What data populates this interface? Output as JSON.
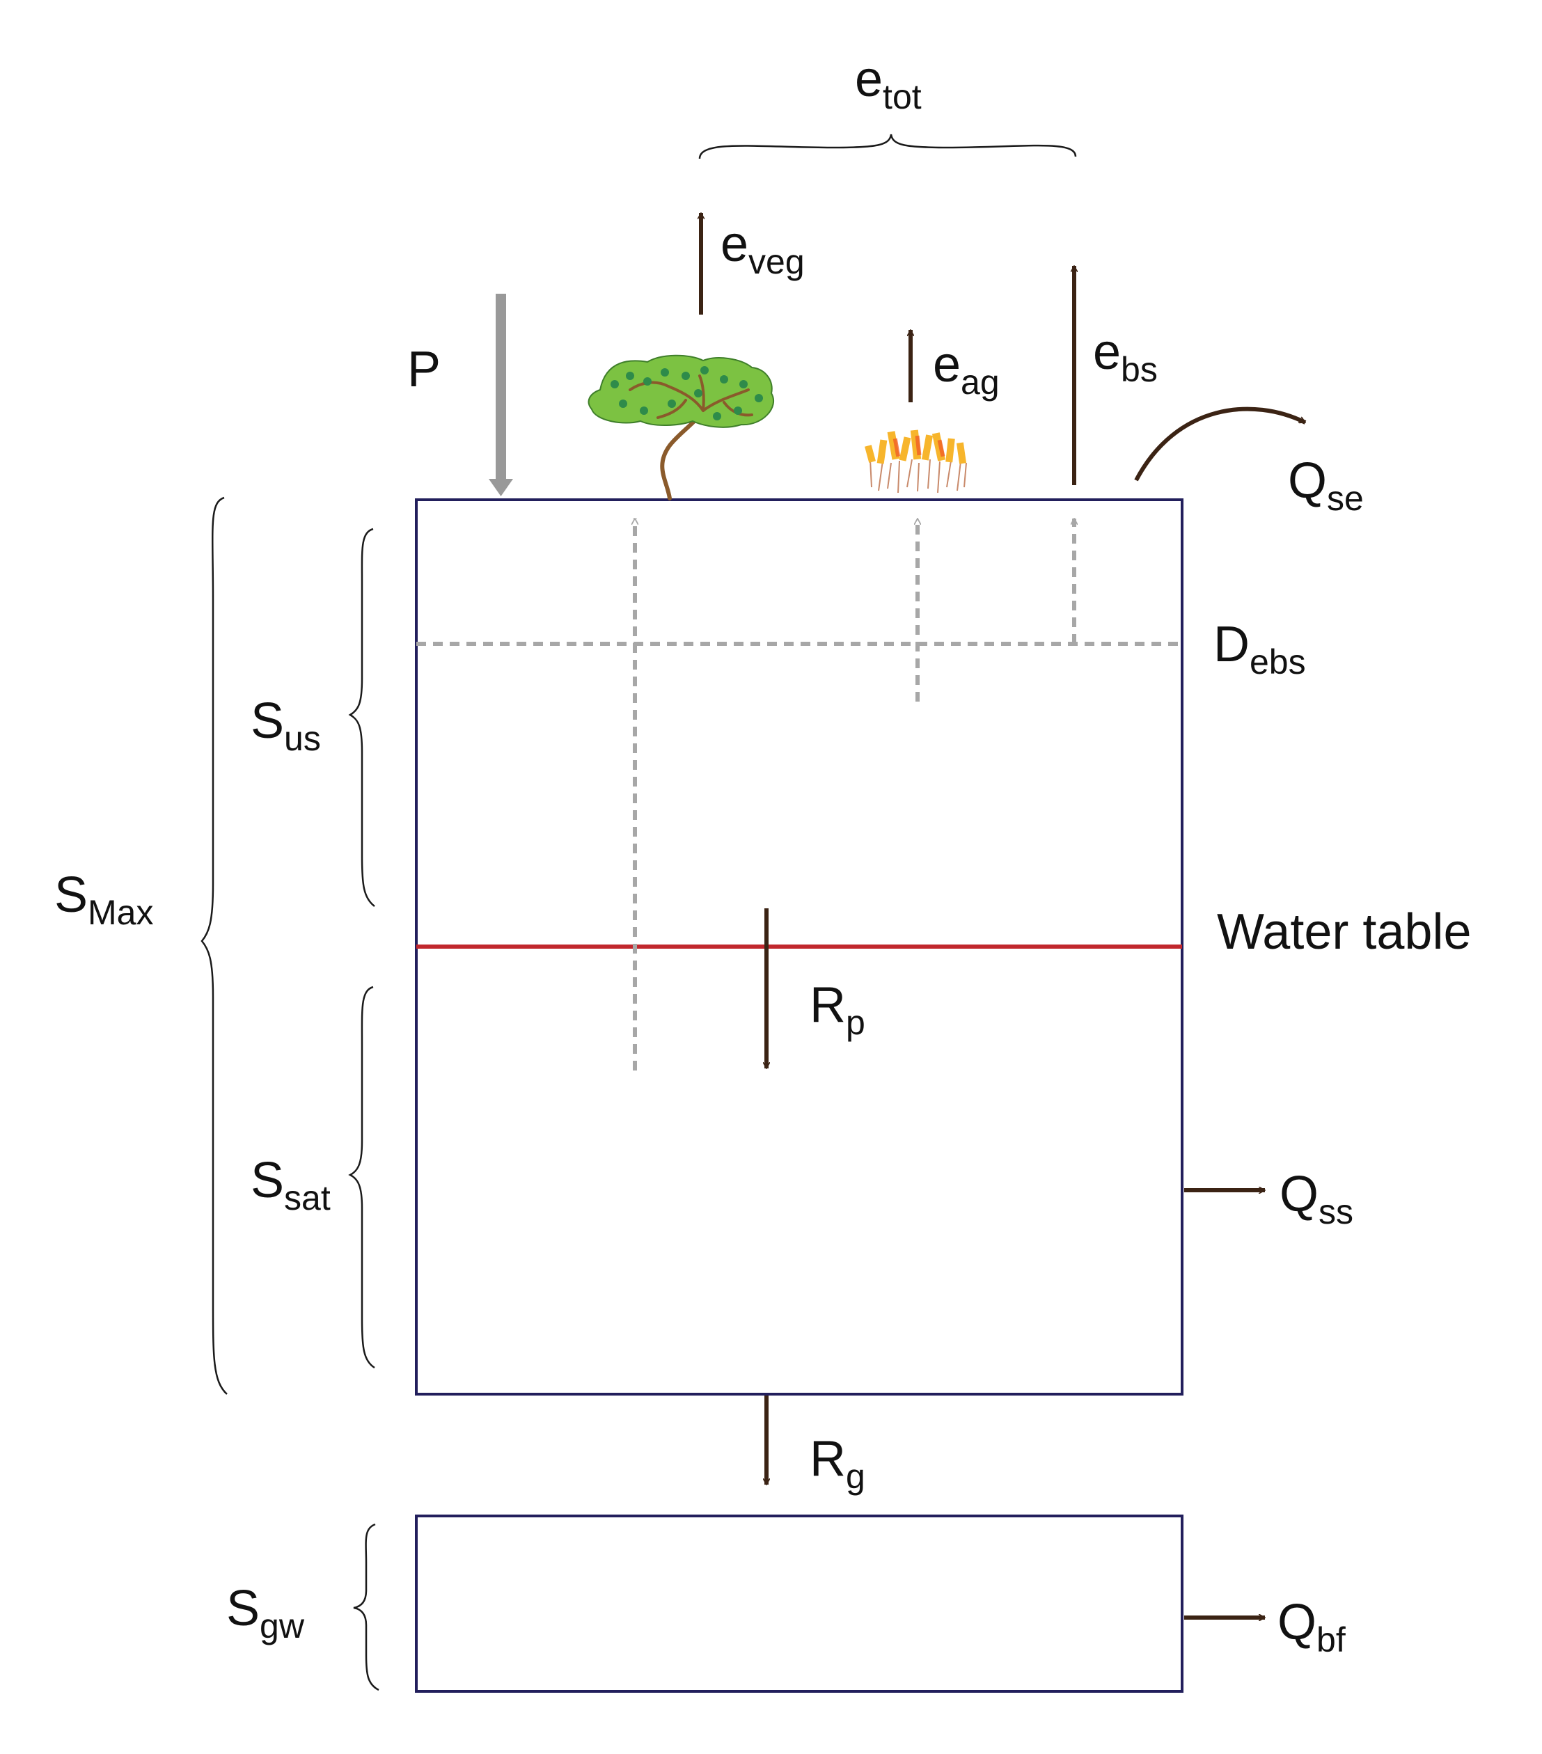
{
  "colors": {
    "box": "#221f5c",
    "flux": "#3b2314",
    "precip": "#999999",
    "dashed": "#a7a7a7",
    "water_table": "#c1272d",
    "brace": "#1a1a1a",
    "tree_leaf": "#7cc242",
    "tree_trunk": "#8a5a2b",
    "grass": "#f7b52c"
  },
  "labels": {
    "e_tot": {
      "main": "e",
      "sub": "tot"
    },
    "e_veg": {
      "main": "e",
      "sub": "veg"
    },
    "e_ag": {
      "main": "e",
      "sub": "ag"
    },
    "e_bs": {
      "main": "e",
      "sub": "bs"
    },
    "P": {
      "main": "P"
    },
    "Q_se": {
      "main": "Q",
      "sub": "se"
    },
    "D_ebs": {
      "main": "D",
      "sub": "ebs"
    },
    "S_us": {
      "main": "S",
      "sub": "us"
    },
    "S_max": {
      "main": "S",
      "sub": "Max"
    },
    "water_table": "Water table",
    "R_p": {
      "main": "R",
      "sub": "p"
    },
    "S_sat": {
      "main": "S",
      "sub": "sat"
    },
    "Q_ss": {
      "main": "Q",
      "sub": "ss"
    },
    "R_g": {
      "main": "R",
      "sub": "g"
    },
    "S_gw": {
      "main": "S",
      "sub": "gw"
    },
    "Q_bf": {
      "main": "Q",
      "sub": "bf"
    }
  },
  "icons": {
    "tree": "tree-icon",
    "grass": "grass-icon"
  }
}
